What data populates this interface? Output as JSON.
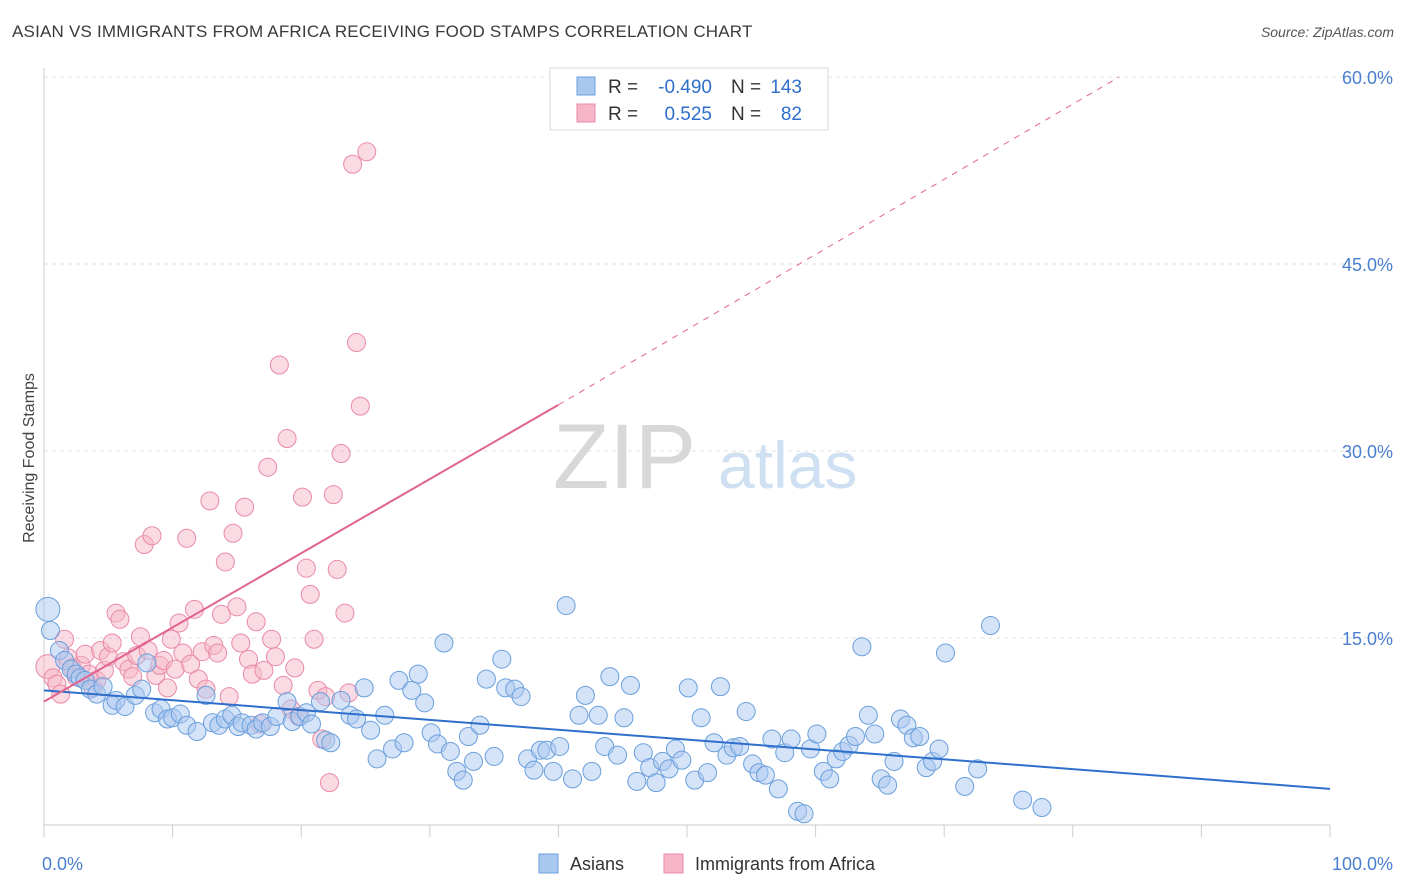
{
  "chart_data": {
    "type": "scatter",
    "title": "ASIAN VS IMMIGRANTS FROM AFRICA RECEIVING FOOD STAMPS CORRELATION CHART",
    "source": "Source: ZipAtlas.com",
    "ylabel": "Receiving Food Stamps",
    "xlabel": "",
    "xlim": [
      0,
      100
    ],
    "ylim": [
      0,
      60
    ],
    "x_tick_labels": [
      "0.0%",
      "100.0%"
    ],
    "y_ticks": [
      15,
      30,
      45,
      60
    ],
    "y_tick_labels": [
      "15.0%",
      "30.0%",
      "45.0%",
      "60.0%"
    ],
    "watermark": {
      "zip": "ZIP",
      "atlas": "atlas"
    },
    "legend_stats": [
      {
        "r_label": "R =",
        "r_value": "-0.490",
        "n_label": "N =",
        "n_value": "143"
      },
      {
        "r_label": "R =",
        "r_value": "0.525",
        "n_label": "N =",
        "n_value": "82"
      }
    ],
    "colors": {
      "asians_fill": "#a9c8ef",
      "asians_stroke": "#6a9fdc",
      "asians_line": "#2f6fcc",
      "africa_fill": "#f6b6c8",
      "africa_stroke": "#e98aa7",
      "africa_line": "#e0648e",
      "tick_text": "#4a7fd0",
      "grid": "#e0e0e0",
      "axis": "#cccccc"
    },
    "series": [
      {
        "name": "Asians",
        "trend": {
          "x0": 0,
          "y0": 10.8,
          "x1": 100,
          "y1": 2.9
        },
        "points": [
          [
            0.3,
            17.3
          ],
          [
            0.5,
            15.6
          ],
          [
            1.2,
            14.0
          ],
          [
            1.6,
            13.2
          ],
          [
            2.1,
            12.5
          ],
          [
            2.5,
            12.1
          ],
          [
            2.8,
            11.8
          ],
          [
            3.2,
            11.6
          ],
          [
            3.6,
            10.9
          ],
          [
            4.1,
            10.5
          ],
          [
            4.6,
            11.1
          ],
          [
            5.3,
            9.6
          ],
          [
            5.6,
            10.0
          ],
          [
            6.3,
            9.5
          ],
          [
            7.1,
            10.4
          ],
          [
            7.6,
            10.9
          ],
          [
            8.0,
            13.0
          ],
          [
            8.6,
            9.0
          ],
          [
            9.1,
            9.3
          ],
          [
            9.6,
            8.5
          ],
          [
            10.0,
            8.6
          ],
          [
            10.6,
            8.9
          ],
          [
            11.1,
            8.0
          ],
          [
            11.9,
            7.5
          ],
          [
            12.6,
            10.4
          ],
          [
            13.1,
            8.2
          ],
          [
            13.6,
            8.0
          ],
          [
            14.1,
            8.5
          ],
          [
            14.6,
            8.8
          ],
          [
            15.1,
            7.9
          ],
          [
            15.4,
            8.2
          ],
          [
            16.1,
            8.0
          ],
          [
            16.5,
            7.7
          ],
          [
            17.0,
            8.2
          ],
          [
            17.6,
            7.9
          ],
          [
            18.1,
            8.7
          ],
          [
            18.9,
            9.9
          ],
          [
            19.3,
            8.3
          ],
          [
            19.9,
            8.7
          ],
          [
            20.4,
            9.0
          ],
          [
            20.8,
            8.1
          ],
          [
            21.5,
            9.9
          ],
          [
            21.9,
            6.8
          ],
          [
            22.3,
            6.6
          ],
          [
            23.1,
            10.0
          ],
          [
            23.8,
            8.8
          ],
          [
            24.3,
            8.5
          ],
          [
            24.9,
            11.0
          ],
          [
            25.4,
            7.6
          ],
          [
            25.9,
            5.3
          ],
          [
            26.5,
            8.8
          ],
          [
            27.1,
            6.1
          ],
          [
            27.6,
            11.6
          ],
          [
            28.0,
            6.6
          ],
          [
            28.6,
            10.8
          ],
          [
            29.1,
            12.1
          ],
          [
            29.6,
            9.8
          ],
          [
            30.1,
            7.4
          ],
          [
            30.6,
            6.5
          ],
          [
            31.1,
            14.6
          ],
          [
            31.6,
            5.9
          ],
          [
            32.1,
            4.3
          ],
          [
            32.6,
            3.6
          ],
          [
            33.0,
            7.1
          ],
          [
            33.4,
            5.1
          ],
          [
            33.9,
            8.0
          ],
          [
            34.4,
            11.7
          ],
          [
            35.0,
            5.5
          ],
          [
            35.6,
            13.3
          ],
          [
            35.9,
            11.0
          ],
          [
            36.6,
            10.9
          ],
          [
            37.1,
            10.3
          ],
          [
            37.6,
            5.3
          ],
          [
            38.1,
            4.4
          ],
          [
            38.6,
            6.0
          ],
          [
            39.1,
            6.0
          ],
          [
            39.6,
            4.3
          ],
          [
            40.1,
            6.3
          ],
          [
            40.6,
            17.6
          ],
          [
            41.1,
            3.7
          ],
          [
            41.6,
            8.8
          ],
          [
            42.1,
            10.4
          ],
          [
            42.6,
            4.3
          ],
          [
            43.1,
            8.8
          ],
          [
            43.6,
            6.3
          ],
          [
            44.0,
            11.9
          ],
          [
            44.6,
            5.6
          ],
          [
            45.1,
            8.6
          ],
          [
            45.6,
            11.2
          ],
          [
            46.1,
            3.5
          ],
          [
            46.6,
            5.8
          ],
          [
            47.1,
            4.6
          ],
          [
            47.6,
            3.4
          ],
          [
            48.1,
            5.1
          ],
          [
            48.6,
            4.5
          ],
          [
            49.1,
            6.1
          ],
          [
            49.6,
            5.2
          ],
          [
            50.1,
            11.0
          ],
          [
            50.6,
            3.6
          ],
          [
            51.1,
            8.6
          ],
          [
            51.6,
            4.2
          ],
          [
            52.1,
            6.6
          ],
          [
            52.6,
            11.1
          ],
          [
            53.1,
            5.6
          ],
          [
            53.6,
            6.2
          ],
          [
            54.1,
            6.3
          ],
          [
            54.6,
            9.1
          ],
          [
            55.1,
            4.9
          ],
          [
            55.6,
            4.2
          ],
          [
            56.1,
            4.0
          ],
          [
            56.6,
            6.9
          ],
          [
            57.1,
            2.9
          ],
          [
            57.6,
            5.8
          ],
          [
            58.1,
            6.9
          ],
          [
            58.6,
            1.1
          ],
          [
            59.1,
            0.9
          ],
          [
            59.6,
            6.1
          ],
          [
            60.1,
            7.3
          ],
          [
            60.6,
            4.3
          ],
          [
            61.1,
            3.7
          ],
          [
            61.6,
            5.3
          ],
          [
            62.1,
            5.9
          ],
          [
            62.6,
            6.4
          ],
          [
            63.1,
            7.1
          ],
          [
            63.6,
            14.3
          ],
          [
            64.1,
            8.8
          ],
          [
            64.6,
            7.3
          ],
          [
            65.1,
            3.7
          ],
          [
            65.6,
            3.2
          ],
          [
            66.1,
            5.1
          ],
          [
            66.6,
            8.5
          ],
          [
            67.1,
            8.0
          ],
          [
            67.6,
            7.0
          ],
          [
            68.1,
            7.1
          ],
          [
            68.6,
            4.6
          ],
          [
            69.1,
            5.1
          ],
          [
            69.6,
            6.1
          ],
          [
            70.1,
            13.8
          ],
          [
            71.6,
            3.1
          ],
          [
            72.6,
            4.5
          ],
          [
            73.6,
            16.0
          ],
          [
            76.1,
            2.0
          ],
          [
            77.6,
            1.4
          ]
        ]
      },
      {
        "name": "Immigrants from Africa",
        "trend": {
          "x0": 0,
          "y0": 9.9,
          "x1": 40,
          "y1": 33.7,
          "dash_x1": 83.6,
          "dash_y1": 60
        },
        "points": [
          [
            0.3,
            12.7
          ],
          [
            0.7,
            11.8
          ],
          [
            1.0,
            11.3
          ],
          [
            1.3,
            10.5
          ],
          [
            1.6,
            14.9
          ],
          [
            1.9,
            13.4
          ],
          [
            2.2,
            12.6
          ],
          [
            2.5,
            11.9
          ],
          [
            2.9,
            12.8
          ],
          [
            3.2,
            13.7
          ],
          [
            3.5,
            12.1
          ],
          [
            3.8,
            11.0
          ],
          [
            4.1,
            11.6
          ],
          [
            4.4,
            14.0
          ],
          [
            4.7,
            12.4
          ],
          [
            5.0,
            13.5
          ],
          [
            5.3,
            14.6
          ],
          [
            5.6,
            17.0
          ],
          [
            5.9,
            16.5
          ],
          [
            6.2,
            13.1
          ],
          [
            6.6,
            12.5
          ],
          [
            6.9,
            11.9
          ],
          [
            7.2,
            13.6
          ],
          [
            7.5,
            15.1
          ],
          [
            7.8,
            22.5
          ],
          [
            8.1,
            14.0
          ],
          [
            8.4,
            23.2
          ],
          [
            8.7,
            12.0
          ],
          [
            9.0,
            12.8
          ],
          [
            9.3,
            13.2
          ],
          [
            9.6,
            11.0
          ],
          [
            9.9,
            14.9
          ],
          [
            10.2,
            12.5
          ],
          [
            10.5,
            16.2
          ],
          [
            10.8,
            13.8
          ],
          [
            11.1,
            23.0
          ],
          [
            11.4,
            12.9
          ],
          [
            11.7,
            17.3
          ],
          [
            12.0,
            11.7
          ],
          [
            12.3,
            13.9
          ],
          [
            12.6,
            10.9
          ],
          [
            12.9,
            26.0
          ],
          [
            13.2,
            14.4
          ],
          [
            13.5,
            13.8
          ],
          [
            13.8,
            16.9
          ],
          [
            14.1,
            21.1
          ],
          [
            14.4,
            10.3
          ],
          [
            14.7,
            23.4
          ],
          [
            15.0,
            17.5
          ],
          [
            15.3,
            14.6
          ],
          [
            15.6,
            25.5
          ],
          [
            15.9,
            13.3
          ],
          [
            16.2,
            12.1
          ],
          [
            16.5,
            16.3
          ],
          [
            16.8,
            8.1
          ],
          [
            17.1,
            12.4
          ],
          [
            17.4,
            28.7
          ],
          [
            17.7,
            14.9
          ],
          [
            18.0,
            13.5
          ],
          [
            18.3,
            36.9
          ],
          [
            18.6,
            11.2
          ],
          [
            18.9,
            31.0
          ],
          [
            19.2,
            9.3
          ],
          [
            19.5,
            12.6
          ],
          [
            19.8,
            8.7
          ],
          [
            20.1,
            26.3
          ],
          [
            20.4,
            20.6
          ],
          [
            20.7,
            18.5
          ],
          [
            21.0,
            14.9
          ],
          [
            21.3,
            10.8
          ],
          [
            21.6,
            6.9
          ],
          [
            21.9,
            10.3
          ],
          [
            22.2,
            3.4
          ],
          [
            22.5,
            26.5
          ],
          [
            22.8,
            20.5
          ],
          [
            23.1,
            29.8
          ],
          [
            23.4,
            17.0
          ],
          [
            23.7,
            10.6
          ],
          [
            24.0,
            53.0
          ],
          [
            24.3,
            38.7
          ],
          [
            24.6,
            33.6
          ],
          [
            25.1,
            54.0
          ]
        ]
      }
    ]
  }
}
